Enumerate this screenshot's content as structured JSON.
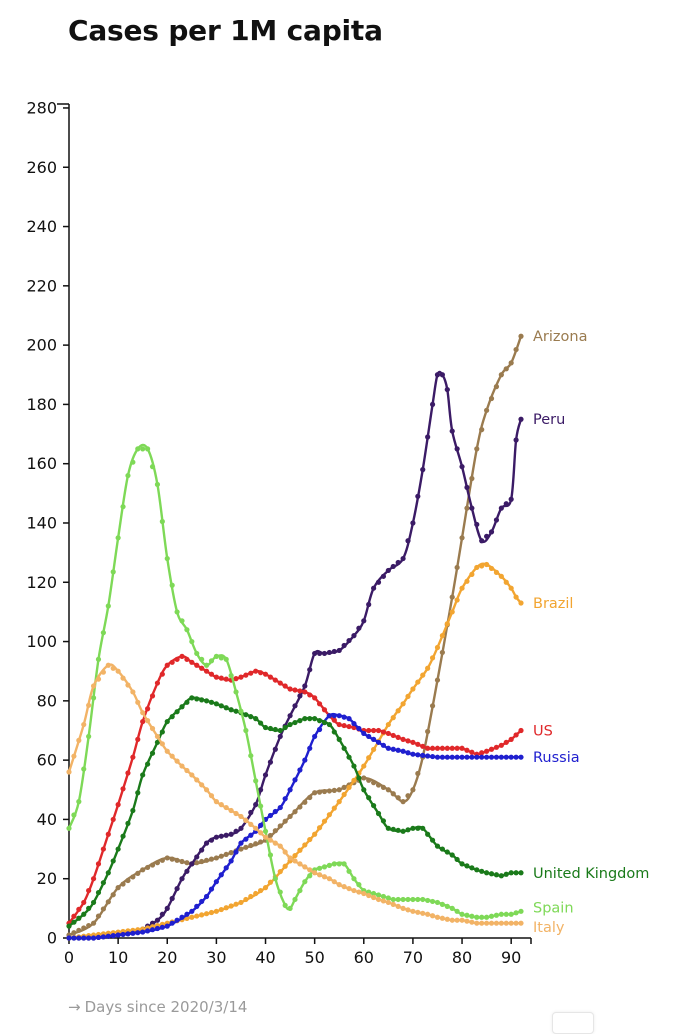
{
  "chart_data": {
    "type": "line",
    "title": "Cases per 1M capita",
    "xlabel": "Days since 2020/3/14",
    "ylabel": "",
    "xlim": [
      0,
      92
    ],
    "ylim": [
      0,
      281
    ],
    "x_ticks": [
      0,
      10,
      20,
      30,
      40,
      50,
      60,
      70,
      80,
      90
    ],
    "y_ticks": [
      0,
      20,
      40,
      60,
      80,
      100,
      120,
      140,
      160,
      180,
      200,
      220,
      240,
      260,
      280
    ],
    "grid": false,
    "legend": "direct labels at end of lines (right)",
    "series": [
      {
        "name": "Arizona",
        "color": "#9a7b4f",
        "x": [
          0,
          5,
          10,
          15,
          20,
          25,
          30,
          35,
          40,
          45,
          50,
          55,
          60,
          65,
          68,
          70,
          72,
          75,
          78,
          80,
          83,
          85,
          88,
          90,
          92
        ],
        "y": [
          1,
          5,
          17,
          23,
          27,
          25,
          27,
          30,
          33,
          41,
          49,
          50,
          54,
          50,
          46,
          50,
          61,
          87,
          115,
          135,
          165,
          178,
          190,
          194,
          203
        ]
      },
      {
        "name": "Peru",
        "color": "#3b1b66",
        "x": [
          0,
          5,
          10,
          15,
          18,
          20,
          23,
          25,
          28,
          30,
          33,
          35,
          38,
          40,
          43,
          45,
          48,
          50,
          52,
          55,
          58,
          60,
          62,
          65,
          68,
          70,
          72,
          74,
          75,
          76,
          77,
          78,
          80,
          82,
          84,
          86,
          88,
          90,
          91,
          92
        ],
        "y": [
          0,
          0,
          1,
          3,
          6,
          10,
          20,
          25,
          32,
          34,
          35,
          37,
          45,
          55,
          68,
          75,
          85,
          96,
          96,
          97,
          102,
          107,
          118,
          124,
          128,
          140,
          158,
          180,
          190,
          190,
          185,
          171,
          159,
          145,
          134,
          137,
          145,
          148,
          168,
          175
        ]
      },
      {
        "name": "Brazil",
        "color": "#f2a531",
        "x": [
          0,
          5,
          10,
          15,
          20,
          25,
          30,
          35,
          40,
          45,
          50,
          55,
          60,
          65,
          68,
          70,
          73,
          75,
          78,
          80,
          83,
          85,
          88,
          90,
          91,
          92
        ],
        "y": [
          0,
          1,
          2,
          3,
          5,
          7,
          9,
          12,
          17,
          26,
          35,
          46,
          58,
          72,
          79,
          84,
          91,
          98,
          110,
          118,
          125,
          126,
          122,
          118,
          115,
          113
        ]
      },
      {
        "name": "US",
        "color": "#e0282a",
        "x": [
          0,
          3,
          5,
          8,
          10,
          13,
          15,
          18,
          20,
          23,
          25,
          28,
          30,
          33,
          35,
          38,
          40,
          43,
          45,
          48,
          50,
          53,
          55,
          58,
          60,
          63,
          65,
          68,
          70,
          73,
          75,
          78,
          80,
          83,
          85,
          88,
          90,
          92
        ],
        "y": [
          5,
          12,
          20,
          35,
          45,
          61,
          73,
          86,
          92,
          95,
          93,
          90,
          88,
          87,
          88,
          90,
          89,
          86,
          84,
          83,
          81,
          75,
          72,
          71,
          70,
          70,
          69,
          67,
          66,
          64,
          64,
          64,
          64,
          62,
          63,
          65,
          67,
          70
        ]
      },
      {
        "name": "Russia",
        "color": "#1f1fcf",
        "x": [
          0,
          5,
          10,
          15,
          20,
          25,
          28,
          30,
          33,
          35,
          38,
          40,
          43,
          45,
          48,
          50,
          53,
          55,
          57,
          60,
          63,
          65,
          68,
          70,
          75,
          80,
          85,
          90,
          92
        ],
        "y": [
          0,
          0,
          1,
          2,
          4,
          9,
          14,
          19,
          26,
          32,
          36,
          40,
          44,
          50,
          60,
          68,
          75,
          75,
          74,
          69,
          66,
          64,
          63,
          62,
          61,
          61,
          61,
          61,
          61
        ]
      },
      {
        "name": "United Kingdom",
        "color": "#1a7a1a",
        "x": [
          0,
          3,
          5,
          8,
          10,
          13,
          15,
          18,
          20,
          23,
          25,
          28,
          30,
          33,
          35,
          38,
          40,
          43,
          45,
          48,
          50,
          53,
          55,
          58,
          60,
          63,
          65,
          68,
          70,
          72,
          75,
          78,
          80,
          83,
          85,
          88,
          90,
          92
        ],
        "y": [
          4,
          8,
          12,
          22,
          30,
          43,
          55,
          66,
          73,
          78,
          81,
          80,
          79,
          77,
          76,
          74,
          71,
          70,
          72,
          74,
          74,
          72,
          67,
          58,
          50,
          42,
          37,
          36,
          37,
          37,
          31,
          28,
          25,
          23,
          22,
          21,
          22,
          22
        ]
      },
      {
        "name": "Spain",
        "color": "#7ed957",
        "x": [
          0,
          2,
          4,
          6,
          8,
          10,
          12,
          14,
          16,
          18,
          20,
          22,
          24,
          26,
          28,
          30,
          32,
          34,
          36,
          38,
          40,
          42,
          44,
          45,
          46,
          48,
          50,
          52,
          54,
          56,
          58,
          60,
          62,
          64,
          66,
          68,
          70,
          72,
          75,
          78,
          80,
          83,
          85,
          88,
          90,
          92
        ],
        "y": [
          37,
          46,
          68,
          94,
          112,
          135,
          156,
          165,
          165,
          153,
          128,
          110,
          104,
          96,
          92,
          95,
          94,
          83,
          70,
          53,
          36,
          20,
          11,
          10,
          13,
          19,
          23,
          24,
          25,
          25,
          20,
          16,
          15,
          14,
          13,
          13,
          13,
          13,
          12,
          10,
          8,
          7,
          7,
          8,
          8,
          9
        ]
      },
      {
        "name": "Italy",
        "color": "#f2b366",
        "x": [
          0,
          3,
          5,
          8,
          10,
          13,
          15,
          18,
          20,
          23,
          25,
          28,
          30,
          33,
          35,
          38,
          40,
          43,
          45,
          48,
          50,
          53,
          55,
          58,
          60,
          63,
          65,
          68,
          70,
          73,
          75,
          78,
          80,
          83,
          85,
          88,
          90,
          92
        ],
        "y": [
          56,
          72,
          85,
          92,
          90,
          83,
          76,
          68,
          63,
          58,
          55,
          50,
          46,
          43,
          41,
          37,
          34,
          31,
          27,
          24,
          22,
          20,
          18,
          16,
          15,
          13,
          12,
          10,
          9,
          8,
          7,
          6,
          6,
          5,
          5,
          5,
          5,
          5
        ]
      }
    ]
  },
  "footnote": {
    "arrow": "→",
    "text": "Days since 2020/3/14"
  }
}
